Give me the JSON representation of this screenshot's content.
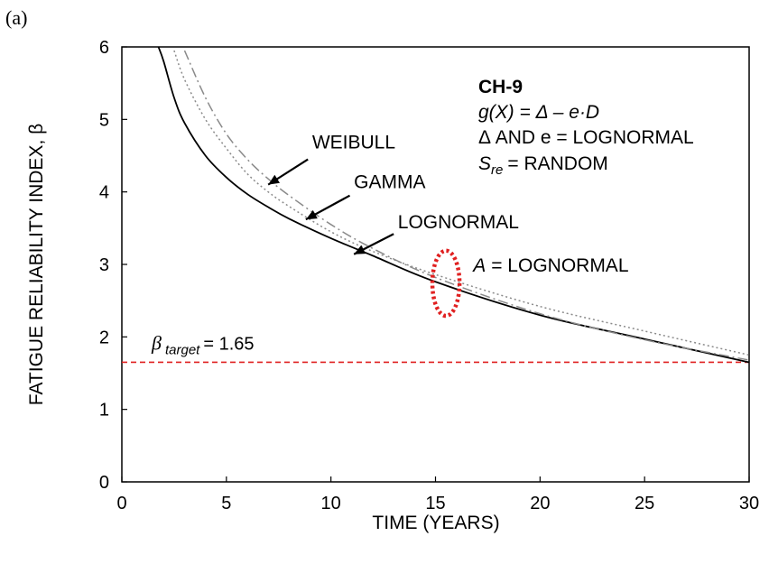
{
  "panel_label": "(a)",
  "chart_data": {
    "type": "line",
    "xlabel": "TIME (YEARS)",
    "ylabel": "FATIGUE RELIABILITY INDEX, β",
    "xlim": [
      0,
      30
    ],
    "ylim": [
      0,
      6
    ],
    "x_ticks": [
      "0",
      "5",
      "10",
      "15",
      "20",
      "25",
      "30"
    ],
    "y_ticks": [
      "0",
      "1",
      "2",
      "3",
      "4",
      "5",
      "6"
    ],
    "grid": false,
    "series": [
      {
        "name": "LOGNORMAL",
        "style": "solid",
        "color": "#000000",
        "x": [
          1.75,
          2,
          2.5,
          3,
          4,
          5,
          6,
          7,
          8,
          10,
          12,
          15,
          20,
          25,
          30
        ],
        "y": [
          6.0,
          5.8,
          5.3,
          4.95,
          4.5,
          4.2,
          3.97,
          3.79,
          3.63,
          3.36,
          3.12,
          2.76,
          2.3,
          1.97,
          1.65
        ]
      },
      {
        "name": "GAMMA",
        "style": "dotted",
        "color": "#8a8a8a",
        "x": [
          2.5,
          3,
          4,
          5,
          6,
          7,
          8,
          10,
          12,
          15,
          20,
          25,
          30
        ],
        "y": [
          5.95,
          5.55,
          5.0,
          4.6,
          4.25,
          4.0,
          3.8,
          3.45,
          3.18,
          2.86,
          2.42,
          2.08,
          1.75
        ]
      },
      {
        "name": "WEIBULL",
        "style": "dash-dot",
        "color": "#8a8a8a",
        "x": [
          3,
          4,
          5,
          6,
          7,
          8,
          10,
          12,
          15,
          20,
          25,
          30
        ],
        "y": [
          5.95,
          5.3,
          4.8,
          4.45,
          4.18,
          3.95,
          3.55,
          3.22,
          2.82,
          2.32,
          1.96,
          1.68
        ]
      }
    ],
    "target_line": {
      "label_symbol": "β",
      "label_subscript": "target",
      "label_value": "= 1.65",
      "y": 1.65,
      "color": "#e02020"
    },
    "highlight_ellipse": {
      "cx": 15.5,
      "cy": 2.74,
      "rx": 0.65,
      "ry": 0.45,
      "color": "#e02020"
    },
    "legend_box": {
      "title": "CH-9",
      "line1": "g(X) = Δ – e·D",
      "line2": "Δ AND e = LOGNORMAL",
      "line3_symbol": "S",
      "line3_subscript": "re",
      "line3_rest": "= RANDOM"
    },
    "annotations": [
      {
        "text": "WEIBULL",
        "text_x": 9.1,
        "text_y": 4.6,
        "arrow_from": [
          8.9,
          4.45
        ],
        "arrow_to": [
          7.0,
          4.1
        ]
      },
      {
        "text": "GAMMA",
        "text_x": 11.1,
        "text_y": 4.05,
        "arrow_from": [
          10.9,
          3.95
        ],
        "arrow_to": [
          8.8,
          3.62
        ]
      },
      {
        "text": "LOGNORMAL",
        "text_x": 13.2,
        "text_y": 3.5,
        "arrow_from": [
          13.0,
          3.42
        ],
        "arrow_to": [
          11.1,
          3.14
        ]
      },
      {
        "text_prefix": "A",
        "text": "= LOGNORMAL",
        "text_x": 16.8,
        "text_y": 2.9
      }
    ]
  }
}
